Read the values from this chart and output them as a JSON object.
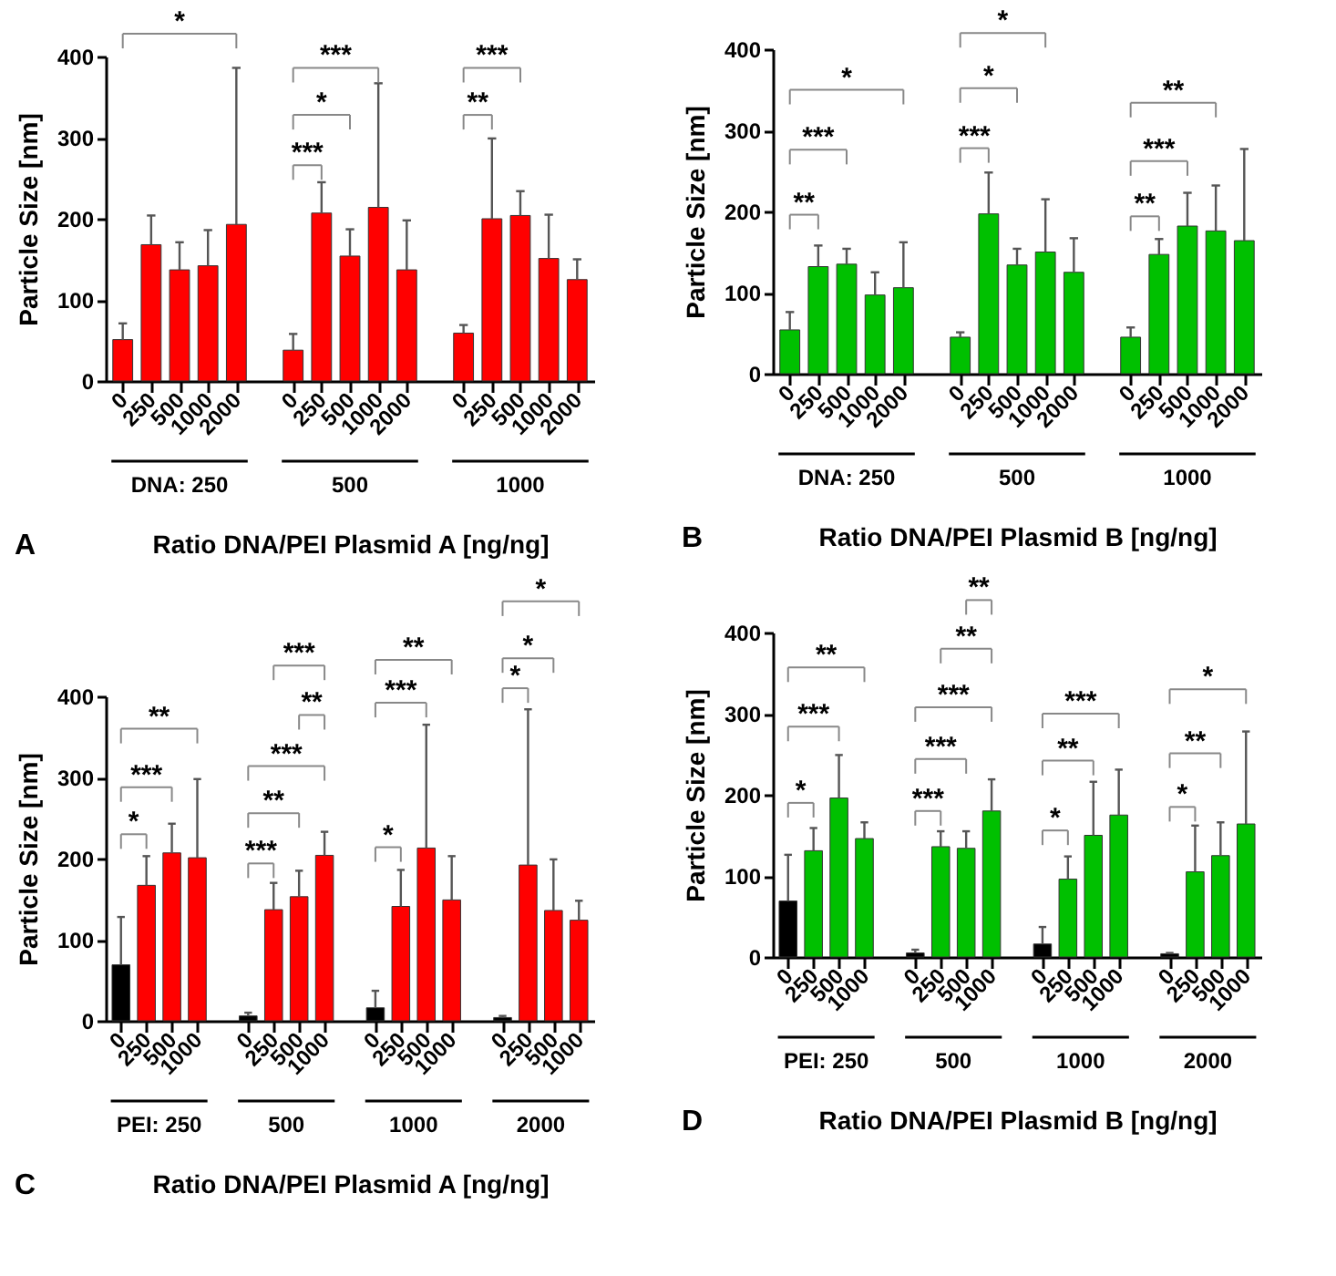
{
  "chart_data": [
    {
      "type": "bar",
      "xlabel": "Ratio DNA/PEI Plasmid A [ng/ng]",
      "ylabel": "Particle Size [nm]",
      "ylim": [
        0,
        400
      ],
      "yticks": [
        0,
        100,
        200,
        300,
        400
      ],
      "grid": false,
      "categories": [
        "0",
        "250",
        "500",
        "1000",
        "2000",
        null,
        "0",
        "250",
        "500",
        "1000",
        "2000",
        null,
        "0",
        "250",
        "500",
        "1000",
        "2000"
      ],
      "values": [
        51,
        168,
        137,
        142,
        193,
        null,
        38,
        207,
        154,
        214,
        137,
        null,
        59,
        200,
        204,
        151,
        125
      ],
      "colors": [
        "#ff0000",
        "#ff0000",
        "#ff0000",
        "#ff0000",
        "#ff0000",
        null,
        "#ff0000",
        "#ff0000",
        "#ff0000",
        "#ff0000",
        "#ff0000",
        null,
        "#ff0000",
        "#ff0000",
        "#ff0000",
        "#ff0000",
        "#ff0000"
      ],
      "errors": [
        [
          51,
          71
        ],
        [
          168,
          204
        ],
        [
          137,
          171
        ],
        [
          142,
          186
        ],
        [
          193,
          386
        ],
        null,
        [
          38,
          58
        ],
        [
          207,
          245
        ],
        [
          154,
          187
        ],
        [
          214,
          367
        ],
        [
          137,
          198
        ],
        null,
        [
          59,
          69
        ],
        [
          200,
          299
        ],
        [
          204,
          234
        ],
        [
          151,
          205
        ],
        [
          125,
          150
        ]
      ],
      "annotations": [
        "DNA: 250",
        "500",
        "1000",
        "A",
        "*",
        "***",
        "*",
        "***",
        "***",
        "**"
      ]
    },
    {
      "type": "bar",
      "xlabel": "Ratio DNA/PEI Plasmid B [ng/ng]",
      "ylabel": "Particle Size [nm]",
      "ylim": [
        0,
        400
      ],
      "yticks": [
        0,
        100,
        200,
        300,
        400
      ],
      "grid": false,
      "categories": [
        "0",
        "250",
        "500",
        "1000",
        "2000",
        null,
        "0",
        "250",
        "500",
        "1000",
        "2000",
        null,
        "0",
        "250",
        "500",
        "1000",
        "2000"
      ],
      "values": [
        54,
        132,
        135,
        97,
        106,
        null,
        45,
        197,
        134,
        150,
        125,
        null,
        45,
        147,
        182,
        176,
        164
      ],
      "colors": [
        "#00c000",
        "#00c000",
        "#00c000",
        "#00c000",
        "#00c000",
        null,
        "#00c000",
        "#00c000",
        "#00c000",
        "#00c000",
        "#00c000",
        null,
        "#00c000",
        "#00c000",
        "#00c000",
        "#00c000",
        "#00c000"
      ],
      "errors": [
        [
          54,
          76
        ],
        [
          132,
          158
        ],
        [
          135,
          154
        ],
        [
          97,
          125
        ],
        [
          106,
          162
        ],
        null,
        [
          45,
          51
        ],
        [
          197,
          248
        ],
        [
          134,
          154
        ],
        [
          150,
          215
        ],
        [
          125,
          167
        ],
        null,
        [
          45,
          57
        ],
        [
          147,
          166
        ],
        [
          182,
          223
        ],
        [
          176,
          232
        ],
        [
          164,
          277
        ]
      ],
      "annotations": [
        "DNA: 250",
        "500",
        "1000",
        "B",
        "*",
        "***",
        "**",
        "*",
        "*",
        "***",
        "**",
        "***",
        "**"
      ]
    },
    {
      "type": "bar",
      "xlabel": "Ratio DNA/PEI Plasmid A [ng/ng]",
      "ylabel": "Particle Size [nm]",
      "ylim": [
        0,
        400
      ],
      "yticks": [
        0,
        100,
        200,
        300,
        400
      ],
      "grid": false,
      "categories": [
        "0",
        "250",
        "500",
        "1000",
        null,
        "0",
        "250",
        "500",
        "1000",
        null,
        "0",
        "250",
        "500",
        "1000",
        null,
        "0",
        "250",
        "500",
        "1000"
      ],
      "values": [
        69,
        167,
        207,
        201,
        null,
        6,
        137,
        153,
        204,
        null,
        16,
        141,
        213,
        149,
        null,
        4,
        192,
        136,
        124
      ],
      "colors": [
        "#000000",
        "#ff0000",
        "#ff0000",
        "#ff0000",
        null,
        "#000000",
        "#ff0000",
        "#ff0000",
        "#ff0000",
        null,
        "#000000",
        "#ff0000",
        "#ff0000",
        "#ff0000",
        null,
        "#000000",
        "#ff0000",
        "#ff0000",
        "#ff0000"
      ],
      "errors": [
        [
          69,
          128
        ],
        [
          167,
          203
        ],
        [
          207,
          243
        ],
        [
          201,
          298
        ],
        null,
        [
          6,
          10
        ],
        [
          137,
          170
        ],
        [
          153,
          185
        ],
        [
          204,
          233
        ],
        null,
        [
          16,
          37
        ],
        [
          141,
          186
        ],
        [
          213,
          365
        ],
        [
          149,
          203
        ],
        null,
        [
          4,
          6
        ],
        [
          192,
          384
        ],
        [
          136,
          199
        ],
        [
          124,
          148
        ]
      ],
      "annotations": [
        "PEI: 250",
        "500",
        "1000",
        "2000",
        "C",
        "**",
        "***",
        "*",
        "***",
        "**",
        "***",
        "**",
        "***",
        "**",
        "***",
        "*",
        "*",
        "*",
        "*"
      ]
    },
    {
      "type": "bar",
      "xlabel": "Ratio DNA/PEI Plasmid B [ng/ng]",
      "ylabel": "Particle Size [nm]",
      "ylim": [
        0,
        400
      ],
      "yticks": [
        0,
        100,
        200,
        300,
        400
      ],
      "grid": false,
      "categories": [
        "0",
        "250",
        "500",
        "1000",
        null,
        "0",
        "250",
        "500",
        "1000",
        null,
        "0",
        "250",
        "500",
        "1000",
        null,
        "0",
        "250",
        "500",
        "1000"
      ],
      "values": [
        69,
        131,
        196,
        146,
        null,
        5,
        136,
        134,
        180,
        null,
        16,
        96,
        150,
        175,
        null,
        4,
        105,
        125,
        164
      ],
      "colors": [
        "#000000",
        "#00c000",
        "#00c000",
        "#00c000",
        null,
        "#000000",
        "#00c000",
        "#00c000",
        "#00c000",
        null,
        "#000000",
        "#00c000",
        "#00c000",
        "#00c000",
        null,
        "#000000",
        "#00c000",
        "#00c000",
        "#00c000"
      ],
      "errors": [
        [
          69,
          126
        ],
        [
          131,
          159
        ],
        [
          196,
          249
        ],
        [
          146,
          166
        ],
        null,
        [
          5,
          9
        ],
        [
          136,
          155
        ],
        [
          134,
          155
        ],
        [
          180,
          219
        ],
        null,
        [
          16,
          37
        ],
        [
          96,
          124
        ],
        [
          150,
          216
        ],
        [
          175,
          231
        ],
        null,
        [
          4,
          5
        ],
        [
          105,
          162
        ],
        [
          125,
          166
        ],
        [
          164,
          278
        ]
      ],
      "annotations": [
        "PEI: 250",
        "500",
        "1000",
        "2000",
        "D",
        "**",
        "***",
        "*",
        "**",
        "**",
        "***",
        "***",
        "***",
        "***",
        "**",
        "*",
        "*",
        "**",
        "*"
      ]
    }
  ]
}
